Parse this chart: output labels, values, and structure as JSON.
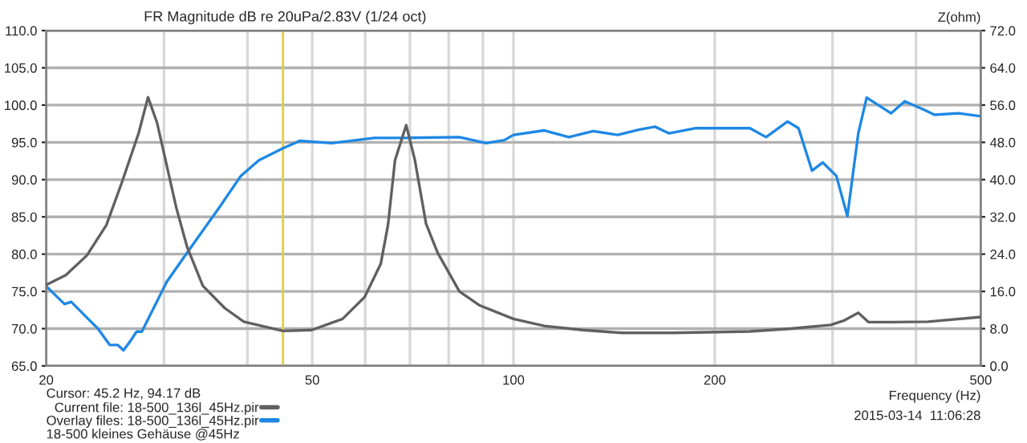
{
  "chart_data": {
    "type": "line",
    "title": "FR Magnitude dB re 20uPa/2.83V (1/24 oct)",
    "xlabel": "Frequency (Hz)",
    "y2label": "Z(ohm)",
    "log": "x",
    "grid": true,
    "legend": "bottom left",
    "xlim": [
      20,
      500
    ],
    "xticks": [
      20,
      {
        "value": 30,
        "label": null
      },
      {
        "value": 40,
        "label": null
      },
      50,
      {
        "value": 60,
        "label": null
      },
      {
        "value": 70,
        "label": null
      },
      {
        "value": 80,
        "label": null
      },
      {
        "value": 90,
        "label": null
      },
      100,
      200,
      {
        "value": 300,
        "label": null
      },
      {
        "value": 400,
        "label": null
      },
      500
    ],
    "ylim": [
      65,
      110
    ],
    "yticks": [
      {
        "value": 65,
        "label": "65.0"
      },
      {
        "value": 70,
        "label": "70.0"
      },
      {
        "value": 75,
        "label": "75.0"
      },
      {
        "value": 80,
        "label": "80.0"
      },
      {
        "value": 85,
        "label": "85.0"
      },
      {
        "value": 90,
        "label": "90.0"
      },
      {
        "value": 95,
        "label": "95.0"
      },
      {
        "value": 100,
        "label": "100.0"
      },
      {
        "value": 105,
        "label": "105.0"
      },
      {
        "value": 110,
        "label": "110.0"
      }
    ],
    "y2lim": [
      0,
      72
    ],
    "y2ticks": [
      {
        "value": 0,
        "label": "0.0"
      },
      {
        "value": 8,
        "label": "8.0"
      },
      {
        "value": 16,
        "label": "16.0"
      },
      {
        "value": 24,
        "label": "24.0"
      },
      {
        "value": 32,
        "label": "32.0"
      },
      {
        "value": 40,
        "label": "40.0"
      },
      {
        "value": 48,
        "label": "48.0"
      },
      {
        "value": 56,
        "label": "56.0"
      },
      {
        "value": 64,
        "label": "64.0"
      },
      {
        "value": 72,
        "label": "72.0"
      }
    ],
    "ref_lines": [
      {
        "axis": "x",
        "value": 45.2,
        "color": "#e0d040"
      }
    ],
    "series": [
      {
        "name": "Current file: 18-500_136l_45Hz.pir",
        "color": "#606060",
        "axis": "y2",
        "x": [
          20,
          21.4,
          23.0,
          24.6,
          26.0,
          27.5,
          28.4,
          29.3,
          31.3,
          32.5,
          34.3,
          37.0,
          39.5,
          45.2,
          49.9,
          55.5,
          59.9,
          63.3,
          64.9,
          66.5,
          69.1,
          71.2,
          74.0,
          77.0,
          83.0,
          89.0,
          100,
          111.2,
          127,
          145.2,
          173.2,
          225.7,
          260,
          298.2,
          311.6,
          327.9,
          339.8,
          367,
          416.6,
          500
        ],
        "values": [
          17.4,
          19.5,
          23.7,
          30.2,
          39.7,
          50,
          57.7,
          52.2,
          34,
          25.5,
          17.2,
          12.4,
          9.5,
          7.5,
          7.7,
          10.1,
          14.8,
          21.9,
          30.2,
          44.2,
          51.7,
          44.2,
          30.5,
          24.3,
          16,
          13,
          10.1,
          8.6,
          7.7,
          7.1,
          7.1,
          7.4,
          8,
          8.8,
          9.7,
          11.4,
          9.4,
          9.4,
          9.5,
          10.5
        ]
      },
      {
        "name": "Overlay files: 18-500_136l_45Hz.pir",
        "color": "#1e88e5",
        "x": [
          20,
          21.3,
          21.8,
          23.0,
          23.9,
          24.9,
          25.6,
          26.1,
          26.8,
          27.3,
          27.8,
          30.3,
          32.5,
          36.2,
          39.1,
          41.6,
          45.2,
          47.9,
          53.5,
          61.9,
          69.1,
          83.0,
          91.0,
          96.9,
          100,
          111.2,
          121.0,
          131.6,
          143.1,
          154,
          162.8,
          170.9,
          187.5,
          203.7,
          225.7,
          238.7,
          257,
          266.9,
          279.6,
          290.2,
          304,
          315.8,
          327.9,
          337.5,
          367,
          384.8,
          410.6,
          426.2,
          463.2,
          500
        ],
        "values": [
          75.7,
          73.3,
          73.6,
          71.5,
          70.0,
          67.8,
          67.8,
          67.1,
          68.5,
          69.6,
          69.6,
          76.3,
          80.2,
          86.1,
          90.5,
          92.6,
          94.2,
          95.2,
          94.9,
          95.6,
          95.6,
          95.7,
          94.9,
          95.3,
          96.0,
          96.6,
          95.7,
          96.5,
          96.0,
          96.7,
          97.1,
          96.2,
          96.9,
          96.9,
          96.9,
          95.7,
          97.8,
          96.9,
          91.2,
          92.3,
          90.5,
          85.1,
          96.2,
          101.0,
          98.9,
          100.5,
          99.4,
          98.7,
          98.9,
          98.5
        ]
      }
    ],
    "annotations": [
      "Cursor: 45.2 Hz, 94.17 dB",
      "18-500 kleines Gehäuse @45Hz",
      "2015-03-14  11:06:28"
    ]
  }
}
